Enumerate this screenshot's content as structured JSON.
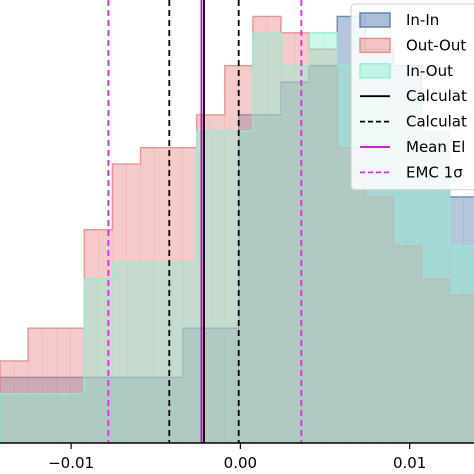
{
  "chart_data": {
    "type": "histogram",
    "title": "",
    "xlabel": "",
    "ylabel": "",
    "xlim": [
      -0.0142,
      0.0138
    ],
    "ylim": [
      0,
      27
    ],
    "xticks": [
      {
        "value": -0.01,
        "label": "−0.01"
      },
      {
        "value": 0.0,
        "label": "0.00"
      },
      {
        "value": 0.01,
        "label": "0.01"
      }
    ],
    "bin_width": 0.00083,
    "series": [
      {
        "name": "In-In",
        "color": "#5b7fb0",
        "bin_start": -0.0142,
        "counts": [
          4,
          4,
          4,
          4,
          4,
          4,
          4,
          4,
          4,
          4,
          4,
          4,
          4,
          7,
          7,
          7,
          7,
          20,
          20,
          20,
          22,
          22,
          23,
          23,
          26,
          26,
          24,
          24,
          23,
          23,
          19,
          19,
          15,
          15,
          8,
          8,
          6,
          6,
          6,
          6,
          4,
          4,
          2,
          2,
          2,
          0,
          0,
          0
        ]
      },
      {
        "name": "Out-Out",
        "color": "#e88a8a",
        "bin_start": -0.0142,
        "counts": [
          5,
          5,
          7,
          7,
          7,
          7,
          13,
          13,
          17,
          17,
          18,
          18,
          18,
          18,
          20,
          20,
          23,
          23,
          26,
          26,
          25,
          25,
          24,
          24,
          18,
          18,
          15,
          15,
          12,
          12,
          10,
          10,
          9,
          9,
          6,
          6,
          2,
          2,
          0,
          0,
          0,
          0,
          0,
          0,
          0,
          0,
          0,
          0
        ]
      },
      {
        "name": "In-Out",
        "color": "#8ff0d2",
        "bin_start": -0.0142,
        "counts": [
          3,
          3,
          3,
          3,
          3,
          3,
          10,
          10,
          11,
          11,
          11,
          11,
          11,
          11,
          19,
          19,
          19,
          19,
          25,
          25,
          23,
          23,
          25,
          25,
          23,
          23,
          21,
          21,
          21,
          21,
          19,
          19,
          12,
          12,
          9,
          9,
          6,
          6,
          4,
          4,
          2,
          2,
          0,
          0,
          0,
          0,
          0,
          0
        ]
      }
    ],
    "lines": [
      {
        "name": "Calculated",
        "x": -0.00215,
        "color": "#000000",
        "style": "solid"
      },
      {
        "name": "Calculated",
        "x": -0.0042,
        "color": "#000000",
        "style": "dashed"
      },
      {
        "name": "Calculated",
        "x": -0.0001,
        "color": "#000000",
        "style": "dashed"
      },
      {
        "name": "Mean EMC",
        "x": -0.0023,
        "color": "#cc00cc",
        "style": "solid"
      },
      {
        "name": "EMC 1σ",
        "x": -0.0078,
        "color": "#ee22ee",
        "style": "dashed"
      },
      {
        "name": "EMC 1σ",
        "x": 0.0036,
        "color": "#ee22ee",
        "style": "dashed"
      }
    ],
    "legend": {
      "placement": "top-right",
      "entries": [
        {
          "label": "In-In",
          "kind": "patch",
          "color": "#5b7fb0"
        },
        {
          "label": "Out-Out",
          "kind": "patch",
          "color": "#e88a8a"
        },
        {
          "label": "In-Out",
          "kind": "patch",
          "color": "#8ff0d2"
        },
        {
          "label": "Calculat",
          "kind": "line",
          "color": "#000000",
          "style": "solid"
        },
        {
          "label": "Calculat",
          "kind": "line",
          "color": "#000000",
          "style": "dashed"
        },
        {
          "label": "Mean El",
          "kind": "line",
          "color": "#cc00cc",
          "style": "solid"
        },
        {
          "label": "EMC 1σ",
          "kind": "line",
          "color": "#ee22ee",
          "style": "dashed"
        }
      ]
    }
  }
}
